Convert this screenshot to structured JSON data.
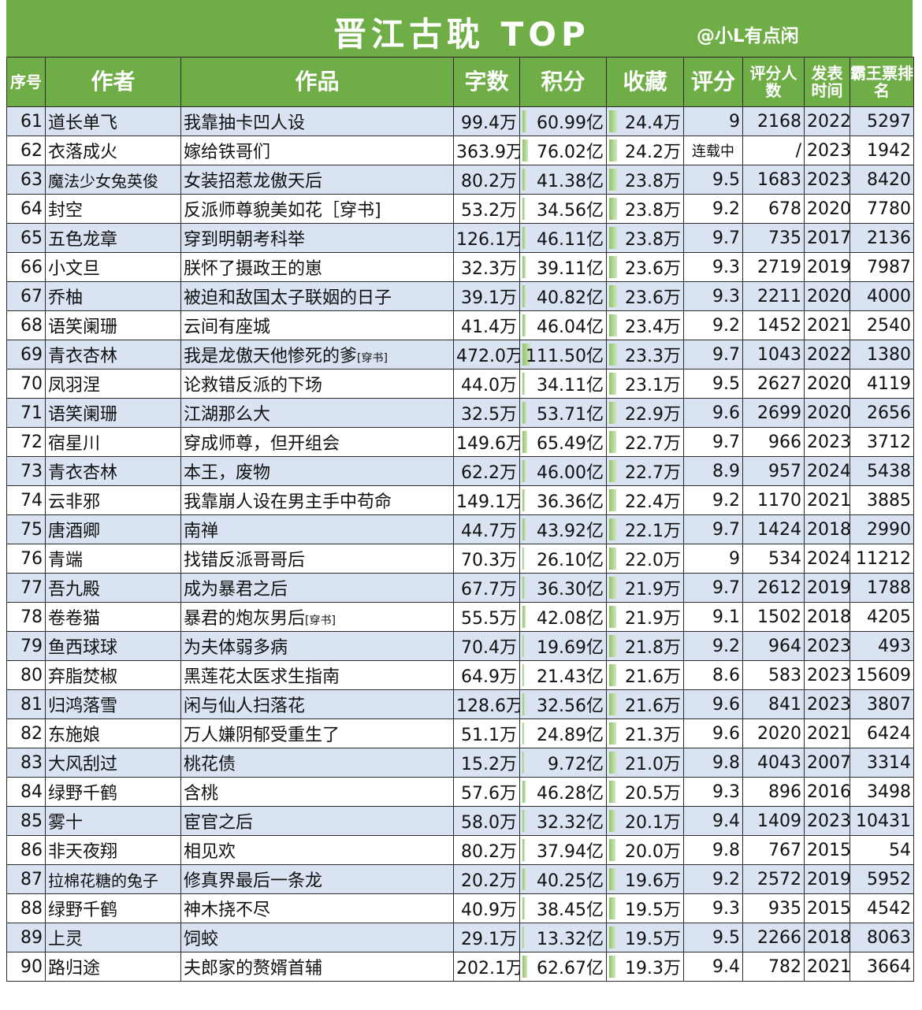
{
  "title": "晋江古耽 TOP",
  "subtitle": "@小L有点闲",
  "headers": [
    "序号",
    "作者",
    "作品",
    "字数",
    "积分",
    "收藏",
    "评分",
    "评分人数",
    "发表时间",
    "霸王票排名"
  ],
  "rows": [
    {
      "rank": "61",
      "author": "道长单飞",
      "work": "我靠抽卡凹人设",
      "words": "99.4万",
      "points": "60.99亿",
      "favorites": "24.4万",
      "score": "9",
      "raters": "2168",
      "year": "2022",
      "bawang": "5297"
    },
    {
      "rank": "62",
      "author": "衣落成火",
      "work": "嫁给铁哥们",
      "words": "363.9万",
      "points": "76.02亿",
      "favorites": "24.2万",
      "score": "连载中",
      "raters": "/",
      "year": "2023",
      "bawang": "1942"
    },
    {
      "rank": "63",
      "author": "魔法少女兔英俊",
      "work": "女装招惹龙傲天后",
      "words": "80.2万",
      "points": "41.38亿",
      "favorites": "23.8万",
      "score": "9.5",
      "raters": "1683",
      "year": "2023",
      "bawang": "8420"
    },
    {
      "rank": "64",
      "author": "封空",
      "work": "反派师尊貌美如花［穿书]",
      "words": "53.2万",
      "points": "34.56亿",
      "favorites": "23.8万",
      "score": "9.2",
      "raters": "678",
      "year": "2020",
      "bawang": "7780"
    },
    {
      "rank": "65",
      "author": "五色龙章",
      "work": "穿到明朝考科举",
      "words": "126.1万",
      "points": "46.11亿",
      "favorites": "23.8万",
      "score": "9.7",
      "raters": "735",
      "year": "2017",
      "bawang": "2136"
    },
    {
      "rank": "66",
      "author": "小文旦",
      "work": "朕怀了摄政王的崽",
      "words": "32.3万",
      "points": "39.11亿",
      "favorites": "23.6万",
      "score": "9.3",
      "raters": "2719",
      "year": "2019",
      "bawang": "7987"
    },
    {
      "rank": "67",
      "author": "乔柚",
      "work": "被迫和敌国太子联姻的日子",
      "words": "39.1万",
      "points": "40.82亿",
      "favorites": "23.6万",
      "score": "9.3",
      "raters": "2211",
      "year": "2020",
      "bawang": "4000"
    },
    {
      "rank": "68",
      "author": "语笑阑珊",
      "work": "云间有座城",
      "words": "41.4万",
      "points": "46.04亿",
      "favorites": "23.4万",
      "score": "9.2",
      "raters": "1452",
      "year": "2021",
      "bawang": "2540"
    },
    {
      "rank": "69",
      "author": "青衣杏林",
      "work": "我是龙傲天他惨死的爹",
      "work_tag": "[穿书]",
      "words": "472.0万",
      "points": "111.50亿",
      "favorites": "23.3万",
      "score": "9.7",
      "raters": "1043",
      "year": "2022",
      "bawang": "1380"
    },
    {
      "rank": "70",
      "author": "凤羽涅",
      "work": "论救错反派的下场",
      "words": "44.0万",
      "points": "34.11亿",
      "favorites": "23.1万",
      "score": "9.5",
      "raters": "2627",
      "year": "2020",
      "bawang": "4119"
    },
    {
      "rank": "71",
      "author": "语笑阑珊",
      "work": "江湖那么大",
      "words": "32.5万",
      "points": "53.71亿",
      "favorites": "22.9万",
      "score": "9.6",
      "raters": "2699",
      "year": "2020",
      "bawang": "2656"
    },
    {
      "rank": "72",
      "author": "宿星川",
      "work": "穿成师尊，但开组会",
      "words": "149.6万",
      "points": "65.49亿",
      "favorites": "22.7万",
      "score": "9.7",
      "raters": "966",
      "year": "2023",
      "bawang": "3712"
    },
    {
      "rank": "73",
      "author": "青衣杏林",
      "work": "本王，废物",
      "words": "62.2万",
      "points": "46.00亿",
      "favorites": "22.7万",
      "score": "8.9",
      "raters": "957",
      "year": "2024",
      "bawang": "5438"
    },
    {
      "rank": "74",
      "author": "云非邪",
      "work": "我靠崩人设在男主手中苟命",
      "words": "149.1万",
      "points": "36.36亿",
      "favorites": "22.4万",
      "score": "9.2",
      "raters": "1170",
      "year": "2021",
      "bawang": "3885"
    },
    {
      "rank": "75",
      "author": "唐酒卿",
      "work": "南禅",
      "words": "44.7万",
      "points": "43.92亿",
      "favorites": "22.1万",
      "score": "9.7",
      "raters": "1424",
      "year": "2018",
      "bawang": "2990"
    },
    {
      "rank": "76",
      "author": "青端",
      "work": "找错反派哥哥后",
      "words": "70.3万",
      "points": "26.10亿",
      "favorites": "22.0万",
      "score": "9",
      "raters": "534",
      "year": "2024",
      "bawang": "11212"
    },
    {
      "rank": "77",
      "author": "吾九殿",
      "work": "成为暴君之后",
      "words": "67.7万",
      "points": "36.30亿",
      "favorites": "21.9万",
      "score": "9.7",
      "raters": "2612",
      "year": "2019",
      "bawang": "1788"
    },
    {
      "rank": "78",
      "author": "卷卷猫",
      "work": "暴君的炮灰男后",
      "work_tag": "[穿书]",
      "words": "55.5万",
      "points": "42.08亿",
      "favorites": "21.9万",
      "score": "9.1",
      "raters": "1502",
      "year": "2018",
      "bawang": "4205"
    },
    {
      "rank": "79",
      "author": "鱼西球球",
      "work": "为夫体弱多病",
      "words": "70.4万",
      "points": "19.69亿",
      "favorites": "21.8万",
      "score": "9.2",
      "raters": "964",
      "year": "2023",
      "bawang": "493"
    },
    {
      "rank": "80",
      "author": "弃脂焚椒",
      "work": "黑莲花太医求生指南",
      "words": "64.9万",
      "points": "21.43亿",
      "favorites": "21.6万",
      "score": "8.6",
      "raters": "583",
      "year": "2023",
      "bawang": "15609"
    },
    {
      "rank": "81",
      "author": "归鸿落雪",
      "work": "闲与仙人扫落花",
      "words": "128.6万",
      "points": "32.56亿",
      "favorites": "21.6万",
      "score": "9.6",
      "raters": "841",
      "year": "2023",
      "bawang": "3807"
    },
    {
      "rank": "82",
      "author": "东施娘",
      "work": "万人嫌阴郁受重生了",
      "words": "51.1万",
      "points": "24.89亿",
      "favorites": "21.3万",
      "score": "9.6",
      "raters": "2020",
      "year": "2021",
      "bawang": "6424"
    },
    {
      "rank": "83",
      "author": "大风刮过",
      "work": "桃花债",
      "words": "15.2万",
      "points": "9.72亿",
      "favorites": "21.0万",
      "score": "9.8",
      "raters": "4043",
      "year": "2007",
      "bawang": "3314"
    },
    {
      "rank": "84",
      "author": "绿野千鹤",
      "work": "含桃",
      "words": "57.6万",
      "points": "46.28亿",
      "favorites": "20.5万",
      "score": "9.3",
      "raters": "896",
      "year": "2016",
      "bawang": "3498"
    },
    {
      "rank": "85",
      "author": "雾十",
      "work": "宦官之后",
      "words": "58.0万",
      "points": "32.32亿",
      "favorites": "20.1万",
      "score": "9.4",
      "raters": "1409",
      "year": "2023",
      "bawang": "10431"
    },
    {
      "rank": "86",
      "author": "非天夜翔",
      "work": "相见欢",
      "words": "80.2万",
      "points": "37.94亿",
      "favorites": "20.0万",
      "score": "9.8",
      "raters": "767",
      "year": "2015",
      "bawang": "54"
    },
    {
      "rank": "87",
      "author": "拉棉花糖的兔子",
      "work": "修真界最后一条龙",
      "words": "20.2万",
      "points": "40.25亿",
      "favorites": "19.6万",
      "score": "9.2",
      "raters": "2572",
      "year": "2019",
      "bawang": "5952"
    },
    {
      "rank": "88",
      "author": "绿野千鹤",
      "work": "神木挠不尽",
      "words": "40.9万",
      "points": "38.45亿",
      "favorites": "19.5万",
      "score": "9.3",
      "raters": "935",
      "year": "2015",
      "bawang": "4542"
    },
    {
      "rank": "89",
      "author": "上灵",
      "work": "饲蛟",
      "words": "29.1万",
      "points": "13.32亿",
      "favorites": "19.5万",
      "score": "9.5",
      "raters": "2266",
      "year": "2018",
      "bawang": "8063"
    },
    {
      "rank": "90",
      "author": "路归途",
      "work": "夫郎家的赘婿首辅",
      "words": "202.1万",
      "points": "62.67亿",
      "favorites": "19.3万",
      "score": "9.4",
      "raters": "782",
      "year": "2021",
      "bawang": "3664"
    }
  ],
  "points_bar_max": 111.5,
  "favorites_bar_max": 24.4,
  "colors": {
    "header_green": "#6fae46",
    "row_blue": "#d9e3f1",
    "bar_green": "#8fc56a"
  }
}
